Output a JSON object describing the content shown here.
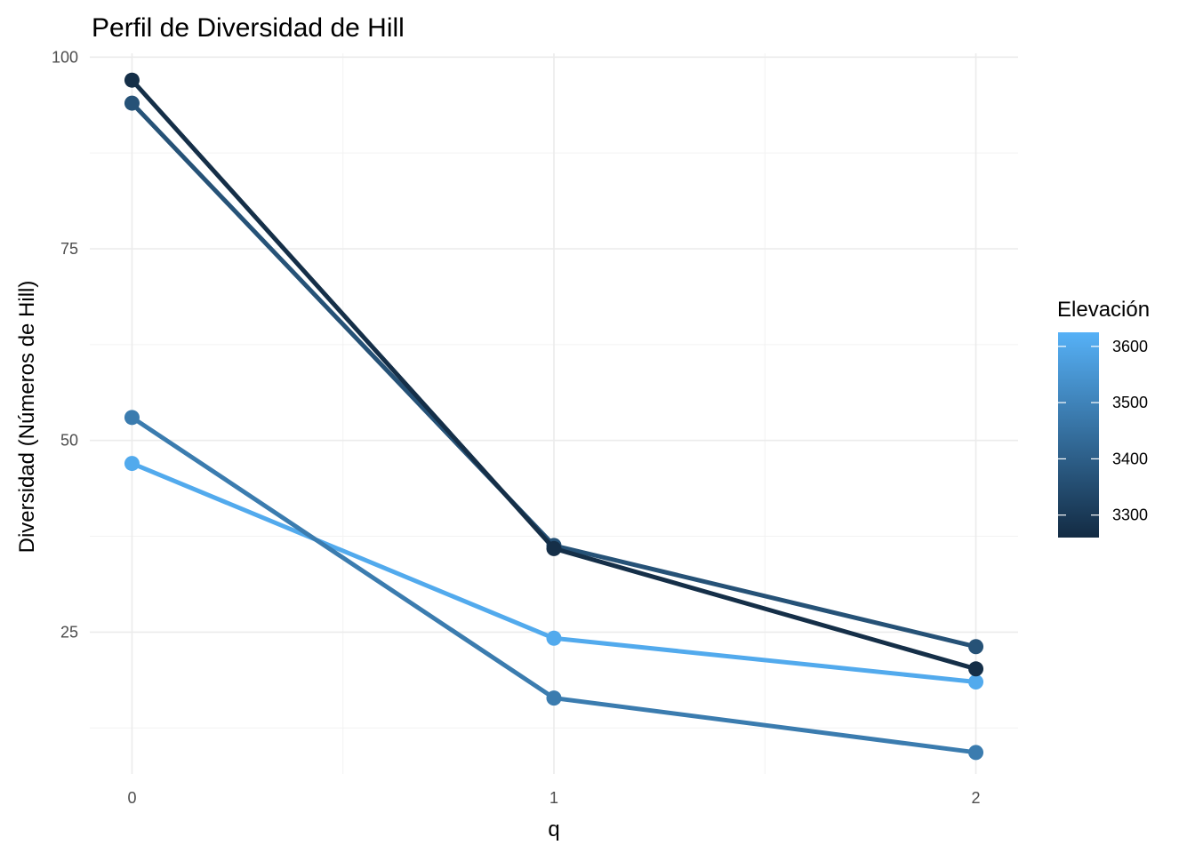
{
  "chart_data": {
    "type": "line",
    "title": "Perfil de Diversidad de Hill",
    "xlabel": "q",
    "ylabel": "Diversidad (Números de Hill)",
    "x": [
      0,
      1,
      2
    ],
    "x_tick_labels": [
      "0",
      "1",
      "2"
    ],
    "xlim": [
      -0.1,
      2.1
    ],
    "ylim": [
      6.5,
      100.5
    ],
    "y_ticks": [
      25,
      50,
      75,
      100
    ],
    "y_tick_labels": [
      "25",
      "50",
      "75",
      "100"
    ],
    "grid": true,
    "legend": {
      "title": "Elevación",
      "position": "right",
      "type": "colorbar",
      "range": [
        3260,
        3625
      ],
      "ticks": [
        3300,
        3400,
        3500,
        3600
      ],
      "tick_labels": [
        "3300",
        "3400",
        "3500",
        "3600"
      ],
      "color_low": "#132B43",
      "color_high": "#56B1F7"
    },
    "series": [
      {
        "elevation": 3605,
        "values": [
          47,
          24.2,
          18.5
        ]
      },
      {
        "elevation": 3480,
        "values": [
          53,
          16.4,
          9.3
        ]
      },
      {
        "elevation": 3365,
        "values": [
          94,
          36.3,
          23.1
        ]
      },
      {
        "elevation": 3270,
        "values": [
          97,
          35.9,
          20.2
        ]
      }
    ]
  }
}
